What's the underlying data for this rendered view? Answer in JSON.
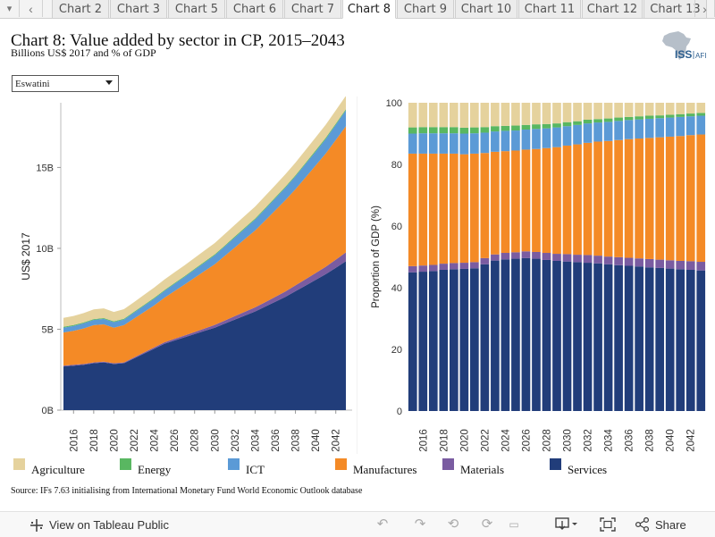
{
  "tabs": {
    "items": [
      "Chart 2",
      "Chart 3",
      "Chart 5",
      "Chart 6",
      "Chart 7",
      "Chart 8",
      "Chart 9",
      "Chart 10",
      "Chart 11",
      "Chart 12",
      "Chart 13"
    ],
    "active": "Chart 8",
    "left_arrow": "‹",
    "right_arrow": "›",
    "caret": "▾"
  },
  "title": "Chart 8: Value added by sector in CP, 2015–2043",
  "subtitle": "Billions US$ 2017 and % of GDP",
  "logo": {
    "text": "ISS",
    "suffix": "AFI"
  },
  "filter": {
    "selected": "Eswatini"
  },
  "legend": [
    {
      "name": "Agriculture",
      "color": "#e5d29d"
    },
    {
      "name": "Energy",
      "color": "#59b761"
    },
    {
      "name": "ICT",
      "color": "#5b9ad6"
    },
    {
      "name": "Manufactures",
      "color": "#f48a26"
    },
    {
      "name": "Materials",
      "color": "#7a5ca1"
    },
    {
      "name": "Services",
      "color": "#213d7a"
    }
  ],
  "source": "Source: IFs 7.63 initialising from International Monetary Fund World Economic Outlook database",
  "footer": {
    "view_on": "View on Tableau Public",
    "share": "Share"
  },
  "chart_data": [
    {
      "type": "area",
      "stacked": true,
      "ylabel": "US$ 2017",
      "yticks": [
        "0B",
        "5B",
        "10B",
        "15B"
      ],
      "ylim": [
        0,
        19
      ],
      "x": [
        2015,
        2016,
        2017,
        2018,
        2019,
        2020,
        2021,
        2022,
        2023,
        2024,
        2025,
        2026,
        2027,
        2028,
        2029,
        2030,
        2031,
        2032,
        2033,
        2034,
        2035,
        2036,
        2037,
        2038,
        2039,
        2040,
        2041,
        2042,
        2043
      ],
      "xtick_labels": [
        "2016",
        "2018",
        "2020",
        "2022",
        "2024",
        "2026",
        "2028",
        "2030",
        "2032",
        "2034",
        "2036",
        "2038",
        "2040",
        "2042"
      ],
      "series": [
        {
          "name": "Services",
          "values": [
            2.7,
            2.75,
            2.8,
            2.9,
            2.95,
            2.85,
            2.9,
            3.2,
            3.5,
            3.8,
            4.1,
            4.3,
            4.5,
            4.7,
            4.9,
            5.1,
            5.35,
            5.6,
            5.85,
            6.1,
            6.4,
            6.7,
            7.0,
            7.35,
            7.7,
            8.05,
            8.4,
            8.8,
            9.2
          ]
        },
        {
          "name": "Materials",
          "values": [
            0.05,
            0.05,
            0.05,
            0.05,
            0.05,
            0.05,
            0.05,
            0.06,
            0.07,
            0.08,
            0.09,
            0.1,
            0.11,
            0.13,
            0.15,
            0.17,
            0.19,
            0.21,
            0.23,
            0.25,
            0.27,
            0.3,
            0.33,
            0.36,
            0.39,
            0.42,
            0.46,
            0.5,
            0.55
          ]
        },
        {
          "name": "Manufactures",
          "values": [
            2.05,
            2.1,
            2.2,
            2.3,
            2.3,
            2.2,
            2.3,
            2.4,
            2.5,
            2.6,
            2.75,
            2.95,
            3.15,
            3.35,
            3.55,
            3.75,
            4.0,
            4.25,
            4.5,
            4.75,
            5.05,
            5.35,
            5.65,
            5.95,
            6.3,
            6.65,
            7.0,
            7.4,
            7.8
          ]
        },
        {
          "name": "ICT",
          "values": [
            0.3,
            0.31,
            0.32,
            0.33,
            0.34,
            0.34,
            0.35,
            0.37,
            0.39,
            0.41,
            0.43,
            0.45,
            0.47,
            0.5,
            0.53,
            0.56,
            0.59,
            0.62,
            0.65,
            0.68,
            0.71,
            0.74,
            0.77,
            0.8,
            0.83,
            0.86,
            0.9,
            0.94,
            0.98
          ]
        },
        {
          "name": "Energy",
          "values": [
            0.05,
            0.05,
            0.05,
            0.05,
            0.05,
            0.05,
            0.05,
            0.05,
            0.05,
            0.05,
            0.05,
            0.05,
            0.05,
            0.05,
            0.05,
            0.05,
            0.05,
            0.06,
            0.06,
            0.06,
            0.06,
            0.06,
            0.06,
            0.06,
            0.07,
            0.07,
            0.07,
            0.07,
            0.07
          ]
        },
        {
          "name": "Agriculture",
          "values": [
            0.55,
            0.56,
            0.58,
            0.6,
            0.6,
            0.58,
            0.59,
            0.6,
            0.62,
            0.64,
            0.65,
            0.66,
            0.67,
            0.68,
            0.69,
            0.7,
            0.71,
            0.72,
            0.73,
            0.74,
            0.75,
            0.76,
            0.77,
            0.78,
            0.79,
            0.8,
            0.81,
            0.82,
            0.83
          ]
        }
      ]
    },
    {
      "type": "bar",
      "stacked": true,
      "ylabel": "Proportion of GDP (%)",
      "yticks": [
        0,
        20,
        40,
        60,
        80,
        100
      ],
      "ylim": [
        0,
        100
      ],
      "categories": [
        2015,
        2016,
        2017,
        2018,
        2019,
        2020,
        2021,
        2022,
        2023,
        2024,
        2025,
        2026,
        2027,
        2028,
        2029,
        2030,
        2031,
        2032,
        2033,
        2034,
        2035,
        2036,
        2037,
        2038,
        2039,
        2040,
        2041,
        2042,
        2043
      ],
      "xtick_labels": [
        "2016",
        "2018",
        "2020",
        "2022",
        "2024",
        "2026",
        "2028",
        "2030",
        "2032",
        "2034",
        "2036",
        "2038",
        "2040",
        "2042"
      ],
      "series": [
        {
          "name": "Services",
          "values": [
            45.0,
            45.2,
            45.4,
            45.8,
            46.0,
            46.1,
            46.3,
            47.6,
            48.8,
            49.2,
            49.4,
            49.6,
            49.4,
            49.0,
            48.7,
            48.5,
            48.3,
            48.1,
            47.9,
            47.6,
            47.3,
            47.1,
            46.9,
            46.6,
            46.4,
            46.2,
            46.0,
            45.8,
            45.6
          ]
        },
        {
          "name": "Materials",
          "values": [
            2.0,
            2.0,
            2.0,
            2.0,
            2.0,
            2.0,
            2.0,
            2.0,
            2.0,
            2.1,
            2.1,
            2.2,
            2.2,
            2.3,
            2.3,
            2.4,
            2.4,
            2.5,
            2.5,
            2.5,
            2.6,
            2.6,
            2.6,
            2.7,
            2.7,
            2.7,
            2.7,
            2.8,
            2.8
          ]
        },
        {
          "name": "Manufactures",
          "values": [
            36.5,
            36.3,
            36.1,
            35.7,
            35.5,
            35.2,
            35.2,
            34.1,
            33.3,
            33.0,
            33.0,
            33.0,
            33.4,
            34.0,
            34.6,
            35.2,
            35.8,
            36.4,
            37.0,
            37.5,
            38.0,
            38.5,
            38.9,
            39.3,
            39.7,
            40.1,
            40.5,
            40.9,
            41.3
          ]
        },
        {
          "name": "ICT",
          "values": [
            6.5,
            6.6,
            6.6,
            6.6,
            6.6,
            6.7,
            6.6,
            6.6,
            6.6,
            6.6,
            6.5,
            6.5,
            6.5,
            6.4,
            6.4,
            6.3,
            6.3,
            6.3,
            6.2,
            6.2,
            6.2,
            6.2,
            6.2,
            6.2,
            6.2,
            6.2,
            6.2,
            6.1,
            6.1
          ]
        },
        {
          "name": "Energy",
          "values": [
            2.0,
            2.0,
            2.0,
            2.0,
            2.0,
            1.9,
            1.9,
            1.8,
            1.7,
            1.6,
            1.6,
            1.5,
            1.5,
            1.4,
            1.3,
            1.3,
            1.2,
            1.2,
            1.1,
            1.1,
            1.1,
            1.0,
            1.0,
            1.0,
            0.9,
            0.9,
            0.9,
            0.9,
            0.9
          ]
        },
        {
          "name": "Agriculture",
          "values": [
            8.0,
            7.9,
            7.9,
            7.9,
            7.9,
            8.1,
            8.0,
            7.9,
            7.6,
            7.5,
            7.4,
            7.2,
            7.0,
            6.9,
            6.7,
            6.3,
            6.0,
            5.5,
            5.3,
            5.1,
            4.8,
            4.6,
            4.4,
            4.2,
            4.1,
            3.9,
            3.7,
            3.5,
            3.3
          ]
        }
      ]
    }
  ]
}
